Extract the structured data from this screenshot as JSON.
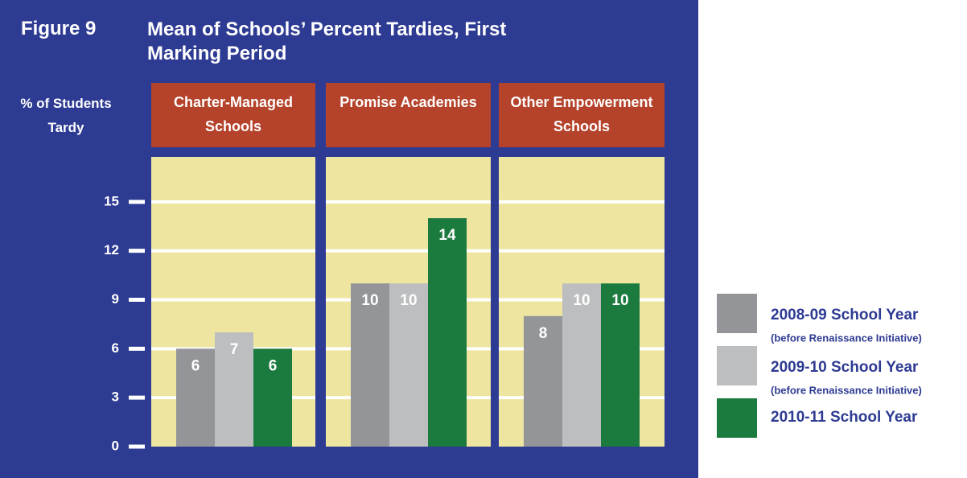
{
  "chart_data": {
    "type": "bar",
    "figure_label": "Figure 9",
    "title": "Mean of Schools’ Percent Tardies, First Marking Period",
    "ylabel": "% of Students Tardy",
    "categories": [
      "Charter-Managed Schools",
      "Promise Academies",
      "Other Empowerment Schools"
    ],
    "series": [
      {
        "name": "2008-09 School Year",
        "note": "(before Renaissance Initiative)",
        "color": "#939598",
        "values": [
          6,
          10,
          8
        ]
      },
      {
        "name": "2009-10 School Year",
        "note": "(before Renaissance Initiative)",
        "color": "#bcbec0",
        "values": [
          7,
          10,
          10
        ]
      },
      {
        "name": "2010-11 School Year",
        "color": "#1b7a3e",
        "values": [
          6,
          14,
          10
        ]
      }
    ],
    "ylim": [
      0,
      18
    ],
    "yticks": [
      0,
      3,
      6,
      9,
      12,
      15
    ],
    "grid": true,
    "background": "#2e3b93",
    "header_color": "#b5432b",
    "plot_color": "#ede5a0"
  }
}
